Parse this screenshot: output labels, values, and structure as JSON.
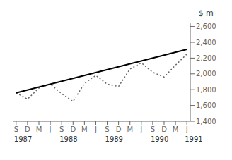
{
  "chart_data": {
    "type": "line",
    "ylabel": "$ m",
    "series": [
      {
        "x": [
          0,
          1,
          2,
          3,
          4,
          5,
          6,
          7,
          8,
          9,
          10,
          11,
          12,
          13,
          14,
          15
        ],
        "values": [
          1760,
          1680,
          1820,
          1870,
          1750,
          1650,
          1880,
          1980,
          1870,
          1840,
          2060,
          2140,
          2020,
          1960,
          2110,
          2250
        ],
        "color": "#666666",
        "line_style": "dotted"
      },
      {
        "x": [
          0,
          15
        ],
        "values": [
          1760,
          2310
        ],
        "color": "#000000",
        "line_style": "solid"
      }
    ],
    "xlim": [
      -0.3,
      15.3
    ],
    "xticks": [
      {
        "value": 0,
        "label": "S"
      },
      {
        "value": 1,
        "label": "D"
      },
      {
        "value": 2,
        "label": "M"
      },
      {
        "value": 3,
        "label": "J"
      },
      {
        "value": 4,
        "label": "S"
      },
      {
        "value": 5,
        "label": "D"
      },
      {
        "value": 6,
        "label": "M"
      },
      {
        "value": 7,
        "label": "J"
      },
      {
        "value": 8,
        "label": "S"
      },
      {
        "value": 9,
        "label": "D"
      },
      {
        "value": 10,
        "label": "M"
      },
      {
        "value": 11,
        "label": "J"
      },
      {
        "value": 12,
        "label": "S"
      },
      {
        "value": 13,
        "label": "D"
      },
      {
        "value": 14,
        "label": "M"
      },
      {
        "value": 15,
        "label": "J"
      }
    ],
    "ylim": [
      1400,
      2650
    ],
    "yticks": [
      {
        "value": 1400,
        "label": "1,400"
      },
      {
        "value": 1600,
        "label": "1,600"
      },
      {
        "value": 1800,
        "label": "1,800"
      },
      {
        "value": 2000,
        "label": "2,000"
      },
      {
        "value": 2200,
        "label": "2,200"
      },
      {
        "value": 2400,
        "label": "2,400"
      },
      {
        "value": 2600,
        "label": "2,600"
      }
    ],
    "annotations": [
      {
        "text": "1987",
        "x": 0
      },
      {
        "text": "1988",
        "x": 4
      },
      {
        "text": "1989",
        "x": 8
      },
      {
        "text": "1990",
        "x": 12
      },
      {
        "text": "1991",
        "x": 15
      }
    ],
    "grid": false
  }
}
